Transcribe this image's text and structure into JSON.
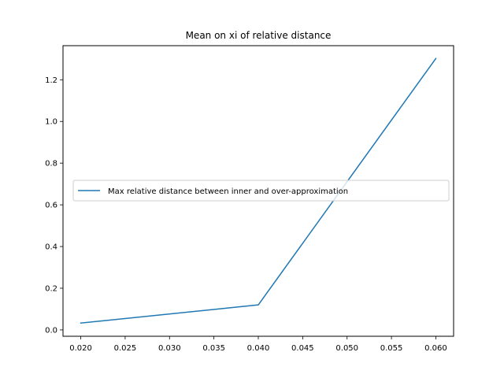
{
  "chart_data": {
    "type": "line",
    "title": "Mean on xi of relative distance",
    "xlabel": "",
    "ylabel": "",
    "xlim": [
      0.018,
      0.062
    ],
    "ylim": [
      -0.0305,
      1.3635
    ],
    "xticks": [
      "0.020",
      "0.025",
      "0.030",
      "0.035",
      "0.040",
      "0.045",
      "0.050",
      "0.055",
      "0.060"
    ],
    "yticks": [
      "0.0",
      "0.2",
      "0.4",
      "0.6",
      "0.8",
      "1.0",
      "1.2"
    ],
    "grid": false,
    "legend": {
      "position": "center-right"
    },
    "series": [
      {
        "name": "Max relative distance between inner and over-approximation",
        "color": "#1f77b4",
        "x": [
          0.02,
          0.04,
          0.06
        ],
        "y": [
          0.033,
          0.12,
          1.302
        ]
      }
    ]
  }
}
